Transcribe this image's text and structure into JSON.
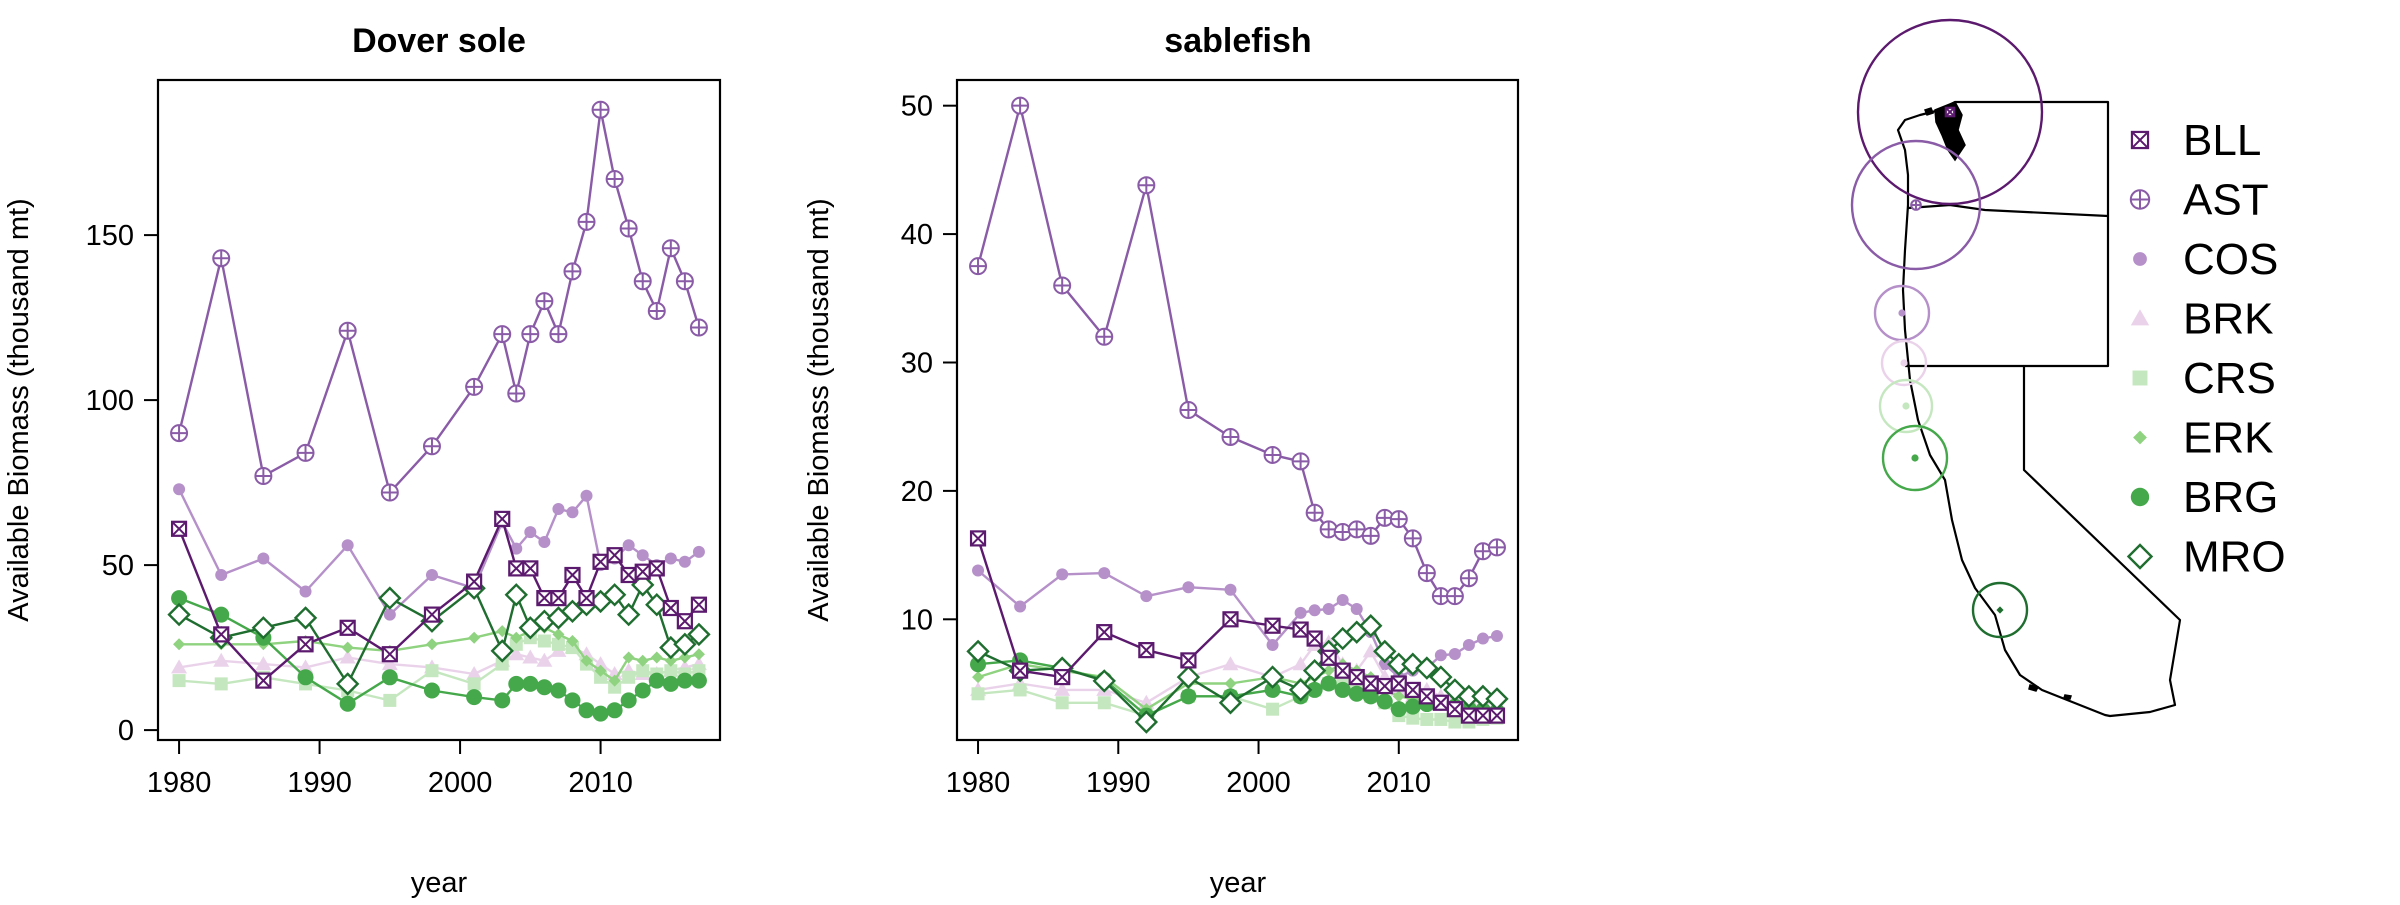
{
  "chart_data": [
    {
      "type": "line",
      "title": "Dover sole",
      "xlabel": "year",
      "ylabel": "Available Biomass (thousand mt)",
      "xlim": [
        1978.5,
        2018.5
      ],
      "ylim": [
        -3,
        197
      ],
      "x_ticks": [
        1980,
        1990,
        2000,
        2010
      ],
      "y_ticks": [
        0,
        50,
        100,
        150
      ],
      "series": [
        {
          "name": "COS",
          "x": [
            1980,
            1983,
            1986,
            1989,
            1992,
            1995,
            1998,
            2001,
            2003,
            2004,
            2005,
            2006,
            2007,
            2008,
            2009,
            2010,
            2011,
            2012,
            2013,
            2014,
            2015,
            2016,
            2017
          ],
          "values": [
            73,
            47,
            52,
            42,
            56,
            35,
            47,
            43,
            63,
            55,
            60,
            57,
            67,
            66,
            71,
            50,
            52,
            56,
            53,
            50,
            52,
            51,
            54
          ]
        },
        {
          "name": "BRK",
          "x": [
            1980,
            1983,
            1986,
            1989,
            1992,
            1995,
            1998,
            2001,
            2003,
            2004,
            2005,
            2006,
            2007,
            2008,
            2009,
            2010,
            2011,
            2012,
            2013,
            2014,
            2015,
            2016,
            2017
          ],
          "values": [
            19,
            21,
            20,
            19,
            22,
            20,
            19,
            17,
            21,
            23,
            22,
            21,
            24,
            25,
            23,
            20,
            17,
            18,
            17,
            17,
            18,
            19,
            20
          ]
        },
        {
          "name": "CRS",
          "x": [
            1980,
            1983,
            1986,
            1989,
            1992,
            1995,
            1998,
            2001,
            2003,
            2004,
            2005,
            2006,
            2007,
            2008,
            2009,
            2010,
            2011,
            2012,
            2013,
            2014,
            2015,
            2016,
            2017
          ],
          "values": [
            15,
            14,
            16,
            14,
            12,
            9,
            18,
            14,
            20,
            26,
            28,
            27,
            26,
            25,
            20,
            16,
            13,
            16,
            18,
            17,
            18,
            17,
            18
          ]
        },
        {
          "name": "ERK",
          "x": [
            1980,
            1983,
            1986,
            1989,
            1992,
            1995,
            1998,
            2001,
            2003,
            2004,
            2005,
            2006,
            2007,
            2008,
            2009,
            2010,
            2011,
            2012,
            2013,
            2014,
            2015,
            2016,
            2017
          ],
          "values": [
            26,
            26,
            26,
            27,
            25,
            24,
            26,
            28,
            30,
            28,
            30,
            31,
            29,
            27,
            21,
            18,
            15,
            22,
            21,
            22,
            21,
            22,
            23
          ]
        },
        {
          "name": "BRG",
          "x": [
            1980,
            1983,
            1986,
            1989,
            1992,
            1995,
            1998,
            2001,
            2003,
            2004,
            2005,
            2006,
            2007,
            2008,
            2009,
            2010,
            2011,
            2012,
            2013,
            2014,
            2015,
            2016,
            2017
          ],
          "values": [
            40,
            35,
            28,
            16,
            8,
            16,
            12,
            10,
            9,
            14,
            14,
            13,
            12,
            9,
            6,
            5,
            6,
            9,
            12,
            15,
            14,
            15,
            15
          ]
        },
        {
          "name": "MRO",
          "x": [
            1980,
            1983,
            1986,
            1989,
            1992,
            1995,
            1998,
            2001,
            2003,
            2004,
            2005,
            2006,
            2007,
            2008,
            2009,
            2010,
            2011,
            2012,
            2013,
            2014,
            2015,
            2016,
            2017
          ],
          "values": [
            35,
            28,
            31,
            34,
            14,
            40,
            33,
            43,
            24,
            41,
            31,
            33,
            34,
            36,
            38,
            39,
            41,
            35,
            44,
            38,
            25,
            26,
            29
          ]
        },
        {
          "name": "BLL",
          "x": [
            1980,
            1983,
            1986,
            1989,
            1992,
            1995,
            1998,
            2001,
            2003,
            2004,
            2005,
            2006,
            2007,
            2008,
            2009,
            2010,
            2011,
            2012,
            2013,
            2014,
            2015,
            2016,
            2017
          ],
          "values": [
            61,
            29,
            15,
            26,
            31,
            23,
            35,
            45,
            64,
            49,
            49,
            40,
            40,
            47,
            40,
            51,
            53,
            47,
            48,
            49,
            37,
            33,
            38
          ]
        },
        {
          "name": "AST",
          "x": [
            1980,
            1983,
            1986,
            1989,
            1992,
            1995,
            1998,
            2001,
            2003,
            2004,
            2005,
            2006,
            2007,
            2008,
            2009,
            2010,
            2011,
            2012,
            2013,
            2014,
            2015,
            2016,
            2017
          ],
          "values": [
            90,
            143,
            77,
            84,
            121,
            72,
            86,
            104,
            120,
            102,
            120,
            130,
            120,
            139,
            154,
            188,
            167,
            152,
            136,
            127,
            146,
            136,
            122
          ]
        }
      ]
    },
    {
      "type": "line",
      "title": "sablefish",
      "xlabel": "year",
      "ylabel": "Available Biomass (thousand mt)",
      "xlim": [
        1978.5,
        2018.5
      ],
      "ylim": [
        0.6,
        52
      ],
      "x_ticks": [
        1980,
        1990,
        2000,
        2010
      ],
      "y_ticks": [
        10,
        20,
        30,
        40,
        50
      ],
      "series": [
        {
          "name": "COS",
          "x": [
            1980,
            1983,
            1986,
            1989,
            1992,
            1995,
            1998,
            2001,
            2003,
            2004,
            2005,
            2006,
            2007,
            2008,
            2009,
            2010,
            2011,
            2012,
            2013,
            2014,
            2015,
            2016,
            2017
          ],
          "values": [
            13.8,
            11,
            13.5,
            13.6,
            11.8,
            12.5,
            12.3,
            8,
            10.5,
            10.7,
            10.8,
            11.5,
            10.8,
            9,
            6.5,
            5.5,
            6,
            6.2,
            7.2,
            7.3,
            8,
            8.5,
            8.7
          ]
        },
        {
          "name": "BRK",
          "x": [
            1980,
            1983,
            1986,
            1989,
            1992,
            1995,
            1998,
            2001,
            2003,
            2004,
            2005,
            2006,
            2007,
            2008,
            2009,
            2010,
            2011,
            2012,
            2013,
            2014,
            2015,
            2016,
            2017
          ],
          "values": [
            4.5,
            5,
            4.5,
            4.5,
            3.5,
            5.5,
            6.5,
            5.5,
            6.5,
            8,
            8.2,
            6.5,
            6,
            7.5,
            5.5,
            4.5,
            4,
            4.5,
            4,
            4,
            3.8,
            3.5,
            3.5
          ]
        },
        {
          "name": "CRS",
          "x": [
            1980,
            1983,
            1986,
            1989,
            1992,
            1995,
            1998,
            2001,
            2003,
            2004,
            2005,
            2006,
            2007,
            2008,
            2009,
            2010,
            2011,
            2012,
            2013,
            2014,
            2015,
            2016,
            2017
          ],
          "values": [
            4.2,
            4.5,
            3.5,
            3.5,
            2.5,
            4,
            4,
            3,
            4,
            4.5,
            5,
            5,
            4.5,
            4,
            3.5,
            2.5,
            2.3,
            2.2,
            2.2,
            2,
            2,
            2.2,
            2.3
          ]
        },
        {
          "name": "ERK",
          "x": [
            1980,
            1983,
            1986,
            1989,
            1992,
            1995,
            1998,
            2001,
            2003,
            2004,
            2005,
            2006,
            2007,
            2008,
            2009,
            2010,
            2011,
            2012,
            2013,
            2014,
            2015,
            2016,
            2017
          ],
          "values": [
            5.5,
            6.5,
            6,
            5.5,
            3,
            5,
            5,
            5.5,
            5,
            5.5,
            6,
            6.5,
            6,
            5.5,
            4.5,
            4,
            3.8,
            3.6,
            3.5,
            3.2,
            3,
            3,
            3
          ]
        },
        {
          "name": "BRG",
          "x": [
            1980,
            1983,
            1986,
            1989,
            1992,
            1995,
            1998,
            2001,
            2003,
            2004,
            2005,
            2006,
            2007,
            2008,
            2009,
            2010,
            2011,
            2012,
            2013,
            2014,
            2015,
            2016,
            2017
          ],
          "values": [
            6.5,
            6.8,
            6.2,
            5.3,
            2.5,
            4,
            4,
            4.5,
            4,
            4.5,
            5,
            4.5,
            4.2,
            4,
            3.6,
            3,
            3.2,
            3.4,
            3.5,
            3.2,
            3,
            2.9,
            2.8
          ]
        },
        {
          "name": "MRO",
          "x": [
            1980,
            1983,
            1986,
            1989,
            1992,
            1995,
            1998,
            2001,
            2003,
            2004,
            2005,
            2006,
            2007,
            2008,
            2009,
            2010,
            2011,
            2012,
            2013,
            2014,
            2015,
            2016,
            2017
          ],
          "values": [
            7.5,
            6,
            6.2,
            5.2,
            2,
            5.5,
            3.5,
            5.5,
            4.5,
            6,
            7.5,
            8.5,
            9,
            9.5,
            7.5,
            6.5,
            6.5,
            6.2,
            5.5,
            4.5,
            4,
            4,
            3.8
          ]
        },
        {
          "name": "BLL",
          "x": [
            1980,
            1983,
            1986,
            1989,
            1992,
            1995,
            1998,
            2001,
            2003,
            2004,
            2005,
            2006,
            2007,
            2008,
            2009,
            2010,
            2011,
            2012,
            2013,
            2014,
            2015,
            2016,
            2017
          ],
          "values": [
            16.3,
            6,
            5.5,
            9,
            7.6,
            6.8,
            10,
            9.5,
            9.2,
            8.5,
            7,
            6,
            5.5,
            5,
            4.8,
            5,
            4.5,
            4,
            3.5,
            3,
            2.5,
            2.5,
            2.5
          ]
        },
        {
          "name": "AST",
          "x": [
            1980,
            1983,
            1986,
            1989,
            1992,
            1995,
            1998,
            2001,
            2003,
            2004,
            2005,
            2006,
            2007,
            2008,
            2009,
            2010,
            2011,
            2012,
            2013,
            2014,
            2015,
            2016,
            2017
          ],
          "values": [
            37.5,
            50,
            36,
            32,
            43.8,
            26.3,
            24.2,
            22.8,
            22.3,
            18.3,
            17,
            16.8,
            17,
            16.5,
            17.9,
            17.8,
            16.3,
            13.6,
            11.8,
            11.8,
            13.2,
            15.3,
            15.6
          ]
        }
      ]
    }
  ],
  "colors": {
    "BLL": "#5c1a6e",
    "AST": "#8a5ba6",
    "COS": "#b590c9",
    "BRK": "#ead3ea",
    "CRS": "#c5e7bf",
    "ERK": "#8fd27f",
    "BRG": "#45a84a",
    "MRO": "#1f6e30"
  },
  "legend": {
    "position": "right",
    "entries": [
      "BLL",
      "AST",
      "COS",
      "BRK",
      "CRS",
      "ERK",
      "BRG",
      "MRO"
    ]
  },
  "markers": {
    "BLL": "square-x",
    "AST": "circle-plus",
    "COS": "dot",
    "BRK": "triangle",
    "CRS": "square",
    "ERK": "diamond-small",
    "BRG": "dot-large",
    "MRO": "diamond-open"
  }
}
